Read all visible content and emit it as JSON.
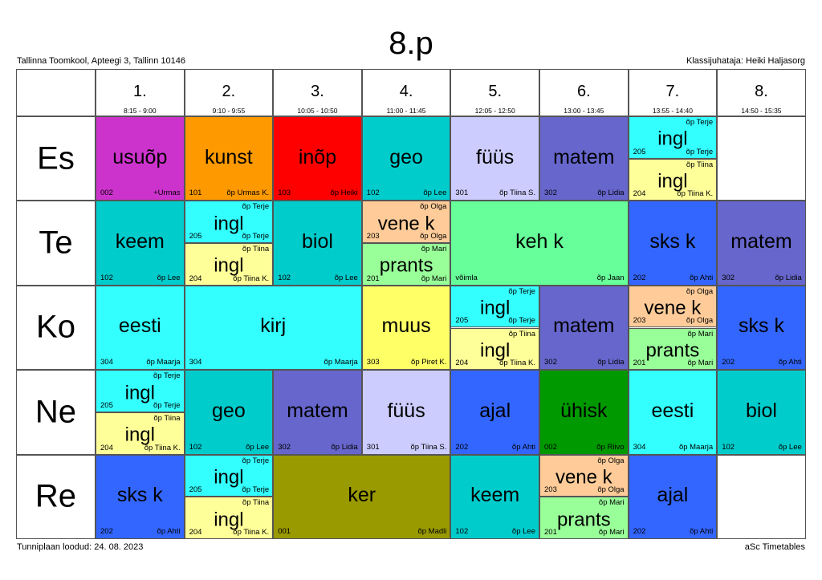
{
  "header": {
    "title": "8.p",
    "school": "Tallinna Toomkool, Apteegi 3, Tallinn 10146",
    "class_teacher": "Klassijuhataja: Heiki Haljasorg"
  },
  "footer": {
    "created": "Tunniplaan loodud: 24. 08. 2023",
    "software": "aSc Timetables"
  },
  "periods": [
    {
      "num": "1.",
      "time": "8:15 - 9:00"
    },
    {
      "num": "2.",
      "time": "9:10 - 9:55"
    },
    {
      "num": "3.",
      "time": "10:05 - 10:50"
    },
    {
      "num": "4.",
      "time": "11:00 - 11:45"
    },
    {
      "num": "5.",
      "time": "12:05 - 12:50"
    },
    {
      "num": "6.",
      "time": "13:00 - 13:45"
    },
    {
      "num": "7.",
      "time": "13:55 - 14:40"
    },
    {
      "num": "8.",
      "time": "14:50 - 15:35"
    }
  ],
  "days": [
    "Es",
    "Te",
    "Ko",
    "Ne",
    "Re"
  ],
  "lessons": [
    {
      "day": 0,
      "start": 0,
      "span": 1,
      "subject": "usuõp",
      "room": "002",
      "teacher": "+Urmas",
      "color": "#cc33cc"
    },
    {
      "day": 0,
      "start": 1,
      "span": 1,
      "subject": "kunst",
      "room": "101",
      "teacher": "õp Urmas K.",
      "color": "#ff9900"
    },
    {
      "day": 0,
      "start": 2,
      "span": 1,
      "subject": "inõp",
      "room": "103",
      "teacher": "õp Heiki",
      "color": "#ff0000"
    },
    {
      "day": 0,
      "start": 3,
      "span": 1,
      "subject": "geo",
      "room": "102",
      "teacher": "õp Lee",
      "color": "#00cccc"
    },
    {
      "day": 0,
      "start": 4,
      "span": 1,
      "subject": "füüs",
      "room": "301",
      "teacher": "õp Tiina S.",
      "color": "#ccccff"
    },
    {
      "day": 0,
      "start": 5,
      "span": 1,
      "subject": "matem",
      "room": "302",
      "teacher": "õp Lidia",
      "color": "#6666cc"
    },
    {
      "day": 0,
      "start": 6,
      "span": 1,
      "split": [
        {
          "subject": "ingl",
          "room": "205",
          "teacher": "õp Terje",
          "teacher_top": "õp Terje",
          "color": "#33ffff"
        },
        {
          "subject": "ingl",
          "room": "204",
          "teacher": "õp Tiina K.",
          "teacher_top": "õp Tiina",
          "color": "#ffff99"
        }
      ]
    },
    {
      "day": 1,
      "start": 0,
      "span": 1,
      "subject": "keem",
      "room": "102",
      "teacher": "õp Lee",
      "color": "#00cccc"
    },
    {
      "day": 1,
      "start": 1,
      "span": 1,
      "split": [
        {
          "subject": "ingl",
          "room": "205",
          "teacher": "õp Terje",
          "teacher_top": "õp Terje",
          "color": "#33ffff"
        },
        {
          "subject": "ingl",
          "room": "204",
          "teacher": "õp Tiina K.",
          "teacher_top": "õp Tiina",
          "color": "#ffff99"
        }
      ]
    },
    {
      "day": 1,
      "start": 2,
      "span": 1,
      "subject": "biol",
      "room": "102",
      "teacher": "õp Lee",
      "color": "#00cccc"
    },
    {
      "day": 1,
      "start": 3,
      "span": 1,
      "split": [
        {
          "subject": "vene k",
          "room": "203",
          "teacher": "õp Olga",
          "teacher_top": "õp Olga",
          "color": "#ffcc99"
        },
        {
          "subject": "prants",
          "room": "201",
          "teacher": "õp Mari",
          "teacher_top": "õp Mari",
          "color": "#99ff99"
        }
      ]
    },
    {
      "day": 1,
      "start": 4,
      "span": 2,
      "subject": "keh k",
      "room": "võimla",
      "teacher": "õp Jaan",
      "color": "#66ff99"
    },
    {
      "day": 1,
      "start": 6,
      "span": 1,
      "subject": "sks k",
      "room": "202",
      "teacher": "õp Ahti",
      "color": "#3366ff"
    },
    {
      "day": 1,
      "start": 7,
      "span": 1,
      "subject": "matem",
      "room": "302",
      "teacher": "õp Lidia",
      "color": "#6666cc"
    },
    {
      "day": 2,
      "start": 0,
      "span": 1,
      "subject": "eesti",
      "room": "304",
      "teacher": "õp Maarja",
      "color": "#33ffff"
    },
    {
      "day": 2,
      "start": 1,
      "span": 2,
      "subject": "kirj",
      "room": "304",
      "teacher": "õp Maarja",
      "color": "#33ffff"
    },
    {
      "day": 2,
      "start": 3,
      "span": 1,
      "subject": "muus",
      "room": "303",
      "teacher": "õp Piret K.",
      "color": "#ffff66"
    },
    {
      "day": 2,
      "start": 4,
      "span": 1,
      "split": [
        {
          "subject": "ingl",
          "room": "205",
          "teacher": "õp Terje",
          "teacher_top": "õp Terje",
          "color": "#33ffff"
        },
        {
          "subject": "ingl",
          "room": "204",
          "teacher": "õp Tiina K.",
          "teacher_top": "õp Tiina",
          "color": "#ffff99"
        }
      ]
    },
    {
      "day": 2,
      "start": 5,
      "span": 1,
      "subject": "matem",
      "room": "302",
      "teacher": "õp Lidia",
      "color": "#6666cc"
    },
    {
      "day": 2,
      "start": 6,
      "span": 1,
      "split": [
        {
          "subject": "vene k",
          "room": "203",
          "teacher": "õp Olga",
          "teacher_top": "õp Olga",
          "color": "#ffcc99"
        },
        {
          "subject": "prants",
          "room": "201",
          "teacher": "õp Mari",
          "teacher_top": "õp Mari",
          "color": "#99ff99"
        }
      ]
    },
    {
      "day": 2,
      "start": 7,
      "span": 1,
      "subject": "sks k",
      "room": "202",
      "teacher": "õp Ahti",
      "color": "#3366ff"
    },
    {
      "day": 3,
      "start": 0,
      "span": 1,
      "split": [
        {
          "subject": "ingl",
          "room": "205",
          "teacher": "õp Terje",
          "teacher_top": "õp Terje",
          "color": "#33ffff"
        },
        {
          "subject": "ingl",
          "room": "204",
          "teacher": "õp Tiina K.",
          "teacher_top": "õp Tiina",
          "color": "#ffff99"
        }
      ]
    },
    {
      "day": 3,
      "start": 1,
      "span": 1,
      "subject": "geo",
      "room": "102",
      "teacher": "õp Lee",
      "color": "#00cccc"
    },
    {
      "day": 3,
      "start": 2,
      "span": 1,
      "subject": "matem",
      "room": "302",
      "teacher": "õp Lidia",
      "color": "#6666cc"
    },
    {
      "day": 3,
      "start": 3,
      "span": 1,
      "subject": "füüs",
      "room": "301",
      "teacher": "õp Tiina S.",
      "color": "#ccccff"
    },
    {
      "day": 3,
      "start": 4,
      "span": 1,
      "subject": "ajal",
      "room": "202",
      "teacher": "õp Ahti",
      "color": "#3366ff"
    },
    {
      "day": 3,
      "start": 5,
      "span": 1,
      "subject": "ühisk",
      "room": "002",
      "teacher": "õp Riivo",
      "color": "#009900"
    },
    {
      "day": 3,
      "start": 6,
      "span": 1,
      "subject": "eesti",
      "room": "304",
      "teacher": "õp Maarja",
      "color": "#33ffff"
    },
    {
      "day": 3,
      "start": 7,
      "span": 1,
      "subject": "biol",
      "room": "102",
      "teacher": "õp Lee",
      "color": "#00cccc"
    },
    {
      "day": 4,
      "start": 0,
      "span": 1,
      "subject": "sks k",
      "room": "202",
      "teacher": "õp Ahti",
      "color": "#3366ff"
    },
    {
      "day": 4,
      "start": 1,
      "span": 1,
      "split": [
        {
          "subject": "ingl",
          "room": "205",
          "teacher": "õp Terje",
          "teacher_top": "õp Terje",
          "color": "#33ffff"
        },
        {
          "subject": "ingl",
          "room": "204",
          "teacher": "õp Tiina K.",
          "teacher_top": "õp Tiina",
          "color": "#ffff99"
        }
      ]
    },
    {
      "day": 4,
      "start": 2,
      "span": 2,
      "subject": "ker",
      "room": "001",
      "teacher": "õp Madli",
      "color": "#999900"
    },
    {
      "day": 4,
      "start": 4,
      "span": 1,
      "subject": "keem",
      "room": "102",
      "teacher": "õp Lee",
      "color": "#00cccc"
    },
    {
      "day": 4,
      "start": 5,
      "span": 1,
      "split": [
        {
          "subject": "vene k",
          "room": "203",
          "teacher": "õp Olga",
          "teacher_top": "õp Olga",
          "color": "#ffcc99"
        },
        {
          "subject": "prants",
          "room": "201",
          "teacher": "õp Mari",
          "teacher_top": "õp Mari",
          "color": "#99ff99"
        }
      ]
    },
    {
      "day": 4,
      "start": 6,
      "span": 1,
      "subject": "ajal",
      "room": "202",
      "teacher": "õp Ahti",
      "color": "#3366ff"
    }
  ]
}
